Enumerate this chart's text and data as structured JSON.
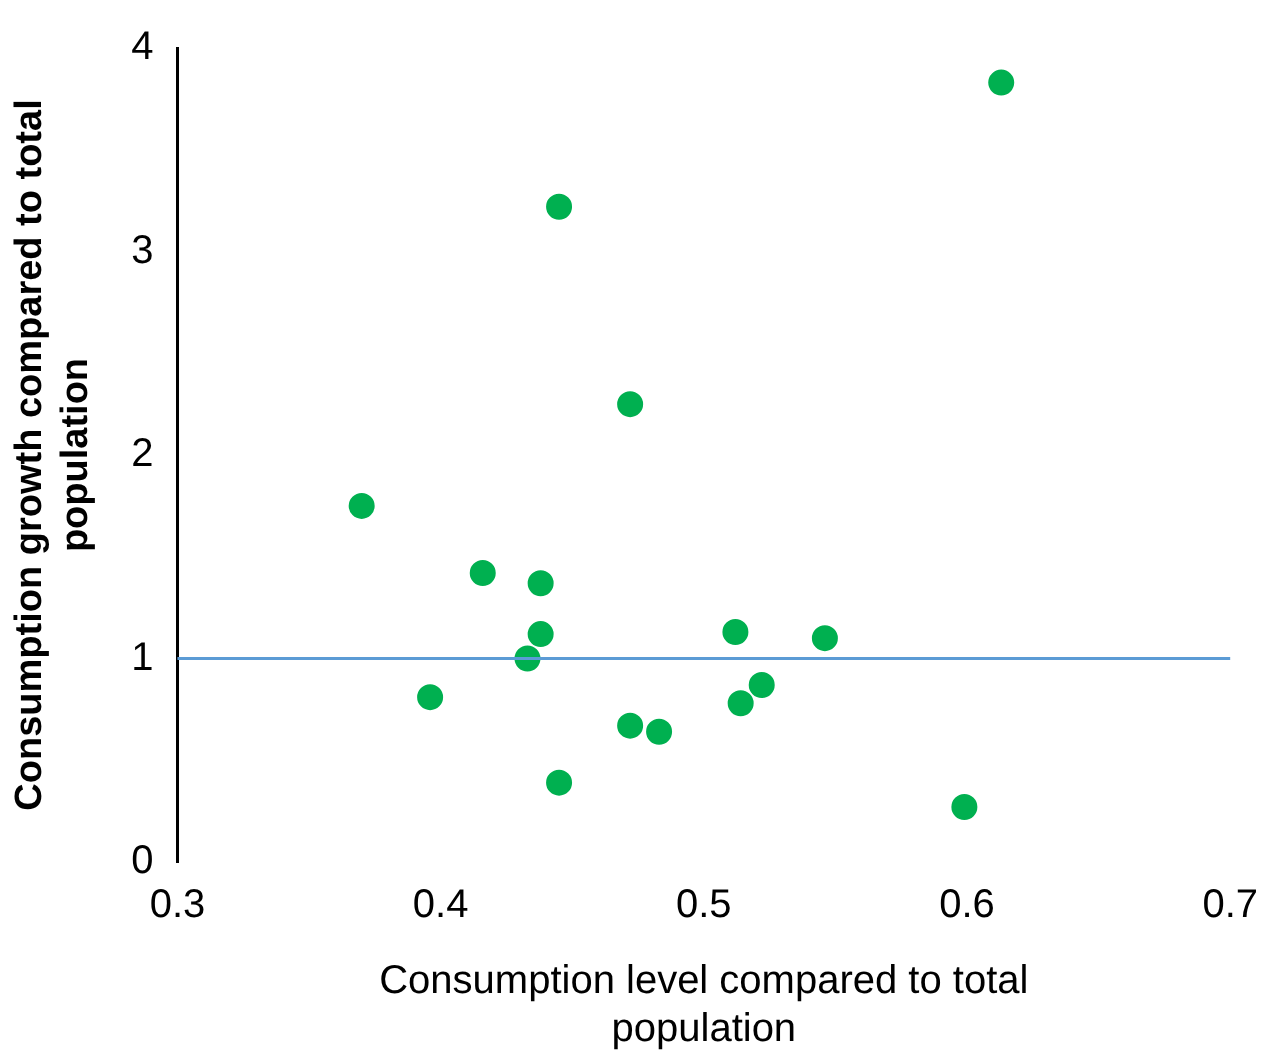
{
  "chart_data": {
    "type": "scatter",
    "xlabel": "Consumption level compared to total population",
    "ylabel": "Consumption growth compared to total population",
    "xlim": [
      0.3,
      0.7
    ],
    "ylim": [
      0,
      4
    ],
    "xticks": [
      0.3,
      0.4,
      0.5,
      0.6,
      0.7
    ],
    "yticks": [
      0,
      1,
      2,
      3,
      4
    ],
    "grid": false,
    "legend": false,
    "marker": "circle",
    "series": [
      {
        "color": "#00b050",
        "x": [
          0.37,
          0.416,
          0.438,
          0.438,
          0.433,
          0.396,
          0.445,
          0.472,
          0.445,
          0.472,
          0.483,
          0.512,
          0.546,
          0.514,
          0.522,
          0.599,
          0.613
        ],
        "values": [
          1.75,
          1.42,
          1.37,
          1.12,
          1.0,
          0.81,
          3.22,
          2.25,
          0.39,
          0.67,
          0.64,
          1.13,
          1.1,
          0.78,
          0.87,
          0.27,
          3.83
        ]
      }
    ],
    "ref_lines": [
      {
        "axis": "y",
        "value": 1,
        "color": "#5b9bd5"
      }
    ]
  }
}
